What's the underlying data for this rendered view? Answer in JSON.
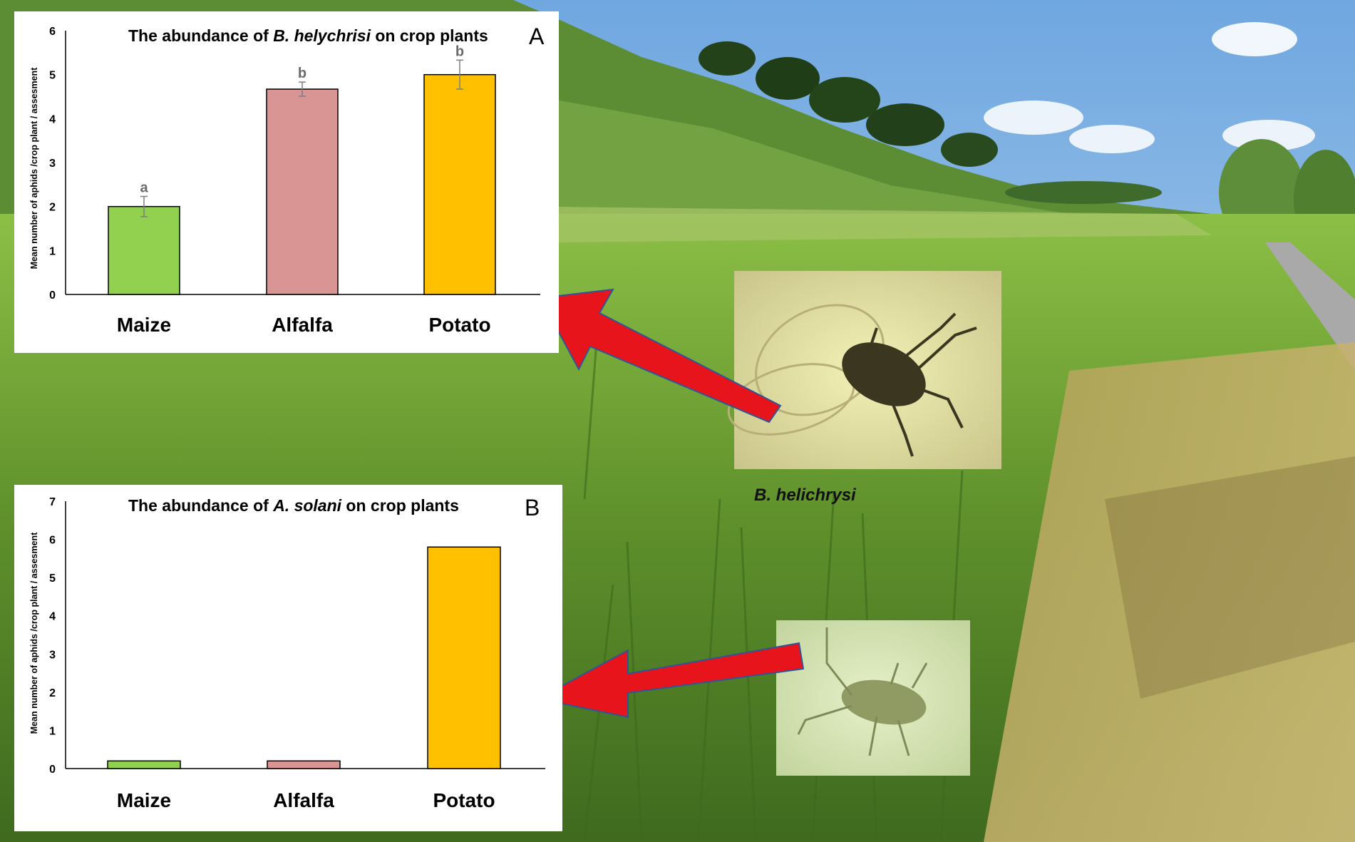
{
  "colors": {
    "sky": "#9cc3ea",
    "hill": "#5f8f34",
    "grass": "#7fae3b",
    "red_arrow": "#e8141b",
    "maize": "#92d050",
    "alfalfa": "#d99594",
    "potato": "#ffc000",
    "sig_letter": "#6b6b6b"
  },
  "photos": [
    {
      "name": "winged-aphid-photo",
      "caption": "B. helichrysi"
    },
    {
      "name": "wingless-aphid-photo",
      "caption": ""
    }
  ],
  "chart_data": [
    {
      "type": "bar",
      "panel_letter": "A",
      "title_prefix": "The abundance of ",
      "title_species": "B. helychrisi",
      "title_suffix": " on crop plants",
      "ylabel": "Mean number of aphids /crop plant / assesment",
      "xlabel": "",
      "ylim": [
        0,
        6
      ],
      "yticks": [
        0,
        1,
        2,
        3,
        4,
        5,
        6
      ],
      "categories": [
        "Maize",
        "Alfalfa",
        "Potato"
      ],
      "values": [
        2.0,
        4.67,
        5.0
      ],
      "errors": [
        0.23,
        0.16,
        0.33
      ],
      "significance": [
        "a",
        "b",
        "b"
      ],
      "bar_colors": [
        "#92d050",
        "#d99594",
        "#ffc000"
      ],
      "grid": false,
      "legend": "none"
    },
    {
      "type": "bar",
      "panel_letter": "B",
      "title_prefix": "The abundance of ",
      "title_species": "A. solani",
      "title_suffix": " on crop plants",
      "ylabel": "Mean number of aphids /crop plant / assesment",
      "xlabel": "",
      "ylim": [
        0,
        7
      ],
      "yticks": [
        0,
        1,
        2,
        3,
        4,
        5,
        6,
        7
      ],
      "categories": [
        "Maize",
        "Alfalfa",
        "Potato"
      ],
      "values": [
        0.2,
        0.2,
        5.8
      ],
      "errors": [],
      "significance": [],
      "bar_colors": [
        "#92d050",
        "#d99594",
        "#ffc000"
      ],
      "grid": false,
      "legend": "none"
    }
  ]
}
